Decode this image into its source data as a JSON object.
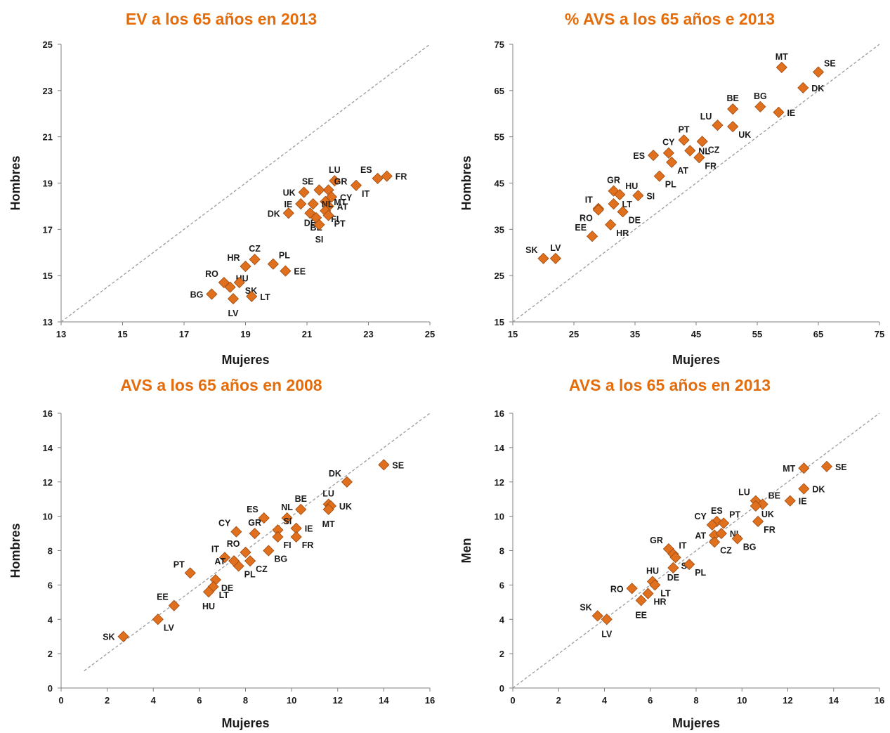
{
  "colors": {
    "title": "#E46C0A",
    "marker": "#E0701E",
    "marker_stroke": "#9A4A10",
    "axis": "#808080",
    "diagonal": "#9a9a9a"
  },
  "chart_data": [
    {
      "type": "scatter",
      "title": "EV a los 65 años en 2013",
      "xlabel": "Mujeres",
      "ylabel": "Hombres",
      "xlim": [
        13,
        25
      ],
      "ylim": [
        13,
        25
      ],
      "xticks": [
        13,
        15,
        17,
        19,
        21,
        23,
        25
      ],
      "yticks": [
        13,
        15,
        17,
        19,
        21,
        23,
        25
      ],
      "diagonal": [
        13,
        25
      ],
      "points": [
        {
          "label": "FR",
          "x": 23.6,
          "y": 19.3,
          "lpos": "r"
        },
        {
          "label": "ES",
          "x": 23.3,
          "y": 19.2,
          "lpos": "tl"
        },
        {
          "label": "IT",
          "x": 22.6,
          "y": 18.9,
          "lpos": "br"
        },
        {
          "label": "LU",
          "x": 21.9,
          "y": 19.1,
          "lpos": "t"
        },
        {
          "label": "GR",
          "x": 21.7,
          "y": 18.7,
          "lpos": "tr"
        },
        {
          "label": "SE",
          "x": 21.4,
          "y": 18.7,
          "lpos": "tl"
        },
        {
          "label": "UK",
          "x": 20.9,
          "y": 18.6,
          "lpos": "l"
        },
        {
          "label": "CY",
          "x": 21.8,
          "y": 18.4,
          "lpos": "r"
        },
        {
          "label": "MT",
          "x": 21.6,
          "y": 18.2,
          "lpos": "r"
        },
        {
          "label": "AT",
          "x": 21.7,
          "y": 18.0,
          "lpos": "r"
        },
        {
          "label": "NL",
          "x": 21.2,
          "y": 18.1,
          "lpos": "r"
        },
        {
          "label": "IE",
          "x": 20.8,
          "y": 18.1,
          "lpos": "l"
        },
        {
          "label": "FI",
          "x": 21.6,
          "y": 17.8,
          "lpos": "br"
        },
        {
          "label": "DK",
          "x": 20.4,
          "y": 17.7,
          "lpos": "l"
        },
        {
          "label": "DE",
          "x": 21.1,
          "y": 17.7,
          "lpos": "b"
        },
        {
          "label": "BE",
          "x": 21.3,
          "y": 17.5,
          "lpos": "b"
        },
        {
          "label": "PT",
          "x": 21.7,
          "y": 17.6,
          "lpos": "br"
        },
        {
          "label": "SI",
          "x": 21.4,
          "y": 17.2,
          "lpos": "bb"
        },
        {
          "label": "CZ",
          "x": 19.3,
          "y": 15.7,
          "lpos": "t"
        },
        {
          "label": "HR",
          "x": 19.0,
          "y": 15.4,
          "lpos": "tl"
        },
        {
          "label": "PL",
          "x": 19.9,
          "y": 15.5,
          "lpos": "tr"
        },
        {
          "label": "EE",
          "x": 20.3,
          "y": 15.2,
          "lpos": "r"
        },
        {
          "label": "RO",
          "x": 18.3,
          "y": 14.7,
          "lpos": "tl"
        },
        {
          "label": "HU",
          "x": 18.5,
          "y": 14.5,
          "lpos": "tr"
        },
        {
          "label": "SK",
          "x": 18.8,
          "y": 14.7,
          "lpos": "br"
        },
        {
          "label": "BG",
          "x": 17.9,
          "y": 14.2,
          "lpos": "l"
        },
        {
          "label": "LV",
          "x": 18.6,
          "y": 14.0,
          "lpos": "bb"
        },
        {
          "label": "LT",
          "x": 19.2,
          "y": 14.1,
          "lpos": "r"
        }
      ]
    },
    {
      "type": "scatter",
      "title": "% AVS a los 65 años e 2013",
      "xlabel": "Mujeres",
      "ylabel": "Hombres",
      "xlim": [
        15,
        75
      ],
      "ylim": [
        15,
        75
      ],
      "xticks": [
        15,
        25,
        35,
        45,
        55,
        65,
        75
      ],
      "yticks": [
        15,
        25,
        35,
        45,
        55,
        65,
        75
      ],
      "diagonal": [
        15,
        75
      ],
      "points": [
        {
          "label": "MT",
          "x": 59,
          "y": 70,
          "lpos": "t"
        },
        {
          "label": "SE",
          "x": 65,
          "y": 69,
          "lpos": "tr"
        },
        {
          "label": "DK",
          "x": 62.5,
          "y": 65.6,
          "lpos": "r"
        },
        {
          "label": "BE",
          "x": 51,
          "y": 61,
          "lpos": "t"
        },
        {
          "label": "BG",
          "x": 55.5,
          "y": 61.5,
          "lpos": "t"
        },
        {
          "label": "IE",
          "x": 58.5,
          "y": 60.3,
          "lpos": "r"
        },
        {
          "label": "LU",
          "x": 48.5,
          "y": 57.5,
          "lpos": "tl"
        },
        {
          "label": "UK",
          "x": 51,
          "y": 57.2,
          "lpos": "br"
        },
        {
          "label": "PT",
          "x": 43,
          "y": 54.3,
          "lpos": "t"
        },
        {
          "label": "CZ",
          "x": 46,
          "y": 54,
          "lpos": "br"
        },
        {
          "label": "CY",
          "x": 40.5,
          "y": 51.5,
          "lpos": "t"
        },
        {
          "label": "NL",
          "x": 44,
          "y": 52,
          "lpos": "r"
        },
        {
          "label": "ES",
          "x": 38,
          "y": 51,
          "lpos": "l"
        },
        {
          "label": "FR",
          "x": 45.5,
          "y": 50.5,
          "lpos": "br"
        },
        {
          "label": "AT",
          "x": 41,
          "y": 49.5,
          "lpos": "br"
        },
        {
          "label": "PL",
          "x": 39,
          "y": 46.5,
          "lpos": "br"
        },
        {
          "label": "GR",
          "x": 31.5,
          "y": 43.3,
          "lpos": "t"
        },
        {
          "label": "HU",
          "x": 32.5,
          "y": 42.5,
          "lpos": "tr"
        },
        {
          "label": "SI",
          "x": 35.5,
          "y": 42.3,
          "lpos": "r"
        },
        {
          "label": "IT",
          "x": 29,
          "y": 39.5,
          "lpos": "tl"
        },
        {
          "label": "LT",
          "x": 31.5,
          "y": 40.5,
          "lpos": "r"
        },
        {
          "label": "RO",
          "x": 29,
          "y": 39.2,
          "lpos": "bl"
        },
        {
          "label": "DE",
          "x": 33,
          "y": 38.8,
          "lpos": "br"
        },
        {
          "label": "HR",
          "x": 31,
          "y": 36,
          "lpos": "br"
        },
        {
          "label": "EE",
          "x": 28,
          "y": 33.5,
          "lpos": "tl"
        },
        {
          "label": "LV",
          "x": 22,
          "y": 28.7,
          "lpos": "t"
        },
        {
          "label": "SK",
          "x": 20,
          "y": 28.7,
          "lpos": "tl"
        }
      ]
    },
    {
      "type": "scatter",
      "title": "AVS a los 65 años en 2008",
      "xlabel": "Mujeres",
      "ylabel": "Hombres",
      "xlim": [
        0,
        16
      ],
      "ylim": [
        0,
        16
      ],
      "xticks": [
        0,
        2,
        4,
        6,
        8,
        10,
        12,
        14,
        16
      ],
      "yticks": [
        0,
        2,
        4,
        6,
        8,
        10,
        12,
        14,
        16
      ],
      "diagonal": [
        1,
        16
      ],
      "points": [
        {
          "label": "SE",
          "x": 14.0,
          "y": 13.0,
          "lpos": "r"
        },
        {
          "label": "DK",
          "x": 12.4,
          "y": 12.0,
          "lpos": "tl"
        },
        {
          "label": "BE",
          "x": 10.4,
          "y": 10.4,
          "lpos": "t"
        },
        {
          "label": "LU",
          "x": 11.6,
          "y": 10.7,
          "lpos": "t"
        },
        {
          "label": "UK",
          "x": 11.7,
          "y": 10.6,
          "lpos": "r"
        },
        {
          "label": "MT",
          "x": 11.6,
          "y": 10.4,
          "lpos": "bb"
        },
        {
          "label": "ES",
          "x": 8.8,
          "y": 9.9,
          "lpos": "tl"
        },
        {
          "label": "NL",
          "x": 9.8,
          "y": 9.9,
          "lpos": "t"
        },
        {
          "label": "CY",
          "x": 7.6,
          "y": 9.1,
          "lpos": "tl"
        },
        {
          "label": "GR",
          "x": 8.4,
          "y": 9.0,
          "lpos": "t"
        },
        {
          "label": "SI",
          "x": 9.4,
          "y": 9.2,
          "lpos": "tr"
        },
        {
          "label": "IE",
          "x": 10.2,
          "y": 9.3,
          "lpos": "r"
        },
        {
          "label": "FI",
          "x": 9.4,
          "y": 8.8,
          "lpos": "br"
        },
        {
          "label": "FR",
          "x": 10.2,
          "y": 8.8,
          "lpos": "br"
        },
        {
          "label": "IT",
          "x": 7.1,
          "y": 7.6,
          "lpos": "tl"
        },
        {
          "label": "RO",
          "x": 8.0,
          "y": 7.9,
          "lpos": "tl"
        },
        {
          "label": "BG",
          "x": 9.0,
          "y": 8.0,
          "lpos": "br"
        },
        {
          "label": "CZ",
          "x": 8.2,
          "y": 7.4,
          "lpos": "br"
        },
        {
          "label": "PL",
          "x": 7.7,
          "y": 7.1,
          "lpos": "br"
        },
        {
          "label": "AT",
          "x": 7.5,
          "y": 7.4,
          "lpos": "l"
        },
        {
          "label": "PT",
          "x": 5.6,
          "y": 6.7,
          "lpos": "tl"
        },
        {
          "label": "DE",
          "x": 6.7,
          "y": 6.3,
          "lpos": "br"
        },
        {
          "label": "LT",
          "x": 6.6,
          "y": 5.9,
          "lpos": "br"
        },
        {
          "label": "HU",
          "x": 6.4,
          "y": 5.6,
          "lpos": "bb"
        },
        {
          "label": "EE",
          "x": 4.9,
          "y": 4.8,
          "lpos": "tl"
        },
        {
          "label": "LV",
          "x": 4.2,
          "y": 4.0,
          "lpos": "br"
        },
        {
          "label": "SK",
          "x": 2.7,
          "y": 3.0,
          "lpos": "l"
        }
      ]
    },
    {
      "type": "scatter",
      "title": "AVS a los 65 años en 2013",
      "xlabel": "Mujeres",
      "ylabel": "Men",
      "xlim": [
        0,
        16
      ],
      "ylim": [
        0,
        16
      ],
      "xticks": [
        0,
        2,
        4,
        6,
        8,
        10,
        12,
        14,
        16
      ],
      "yticks": [
        0,
        2,
        4,
        6,
        8,
        10,
        12,
        14,
        16
      ],
      "diagonal": [
        0,
        16
      ],
      "points": [
        {
          "label": "MT",
          "x": 12.7,
          "y": 12.8,
          "lpos": "l"
        },
        {
          "label": "SE",
          "x": 13.7,
          "y": 12.9,
          "lpos": "r"
        },
        {
          "label": "DK",
          "x": 12.7,
          "y": 11.6,
          "lpos": "r"
        },
        {
          "label": "IE",
          "x": 12.1,
          "y": 10.9,
          "lpos": "r"
        },
        {
          "label": "LU",
          "x": 10.6,
          "y": 10.9,
          "lpos": "tl"
        },
        {
          "label": "BE",
          "x": 10.9,
          "y": 10.7,
          "lpos": "tr"
        },
        {
          "label": "UK",
          "x": 10.6,
          "y": 10.6,
          "lpos": "br"
        },
        {
          "label": "FR",
          "x": 10.7,
          "y": 9.7,
          "lpos": "br"
        },
        {
          "label": "ES",
          "x": 8.9,
          "y": 9.7,
          "lpos": "t"
        },
        {
          "label": "PT",
          "x": 9.2,
          "y": 9.6,
          "lpos": "tr"
        },
        {
          "label": "CY",
          "x": 8.7,
          "y": 9.5,
          "lpos": "tl"
        },
        {
          "label": "AT",
          "x": 8.8,
          "y": 8.9,
          "lpos": "l"
        },
        {
          "label": "NL",
          "x": 9.1,
          "y": 9.0,
          "lpos": "r"
        },
        {
          "label": "CZ",
          "x": 8.8,
          "y": 8.5,
          "lpos": "br"
        },
        {
          "label": "BG",
          "x": 9.8,
          "y": 8.7,
          "lpos": "br"
        },
        {
          "label": "GR",
          "x": 6.8,
          "y": 8.1,
          "lpos": "tl"
        },
        {
          "label": "IT",
          "x": 7.0,
          "y": 7.8,
          "lpos": "tr"
        },
        {
          "label": "SI",
          "x": 7.1,
          "y": 7.6,
          "lpos": "br"
        },
        {
          "label": "PL",
          "x": 7.7,
          "y": 7.2,
          "lpos": "br"
        },
        {
          "label": "DE",
          "x": 7.0,
          "y": 7.0,
          "lpos": "b"
        },
        {
          "label": "HU",
          "x": 6.1,
          "y": 6.2,
          "lpos": "t"
        },
        {
          "label": "LT",
          "x": 6.2,
          "y": 6.0,
          "lpos": "br"
        },
        {
          "label": "RO",
          "x": 5.2,
          "y": 5.8,
          "lpos": "l"
        },
        {
          "label": "HR",
          "x": 5.9,
          "y": 5.5,
          "lpos": "br"
        },
        {
          "label": "EE",
          "x": 5.6,
          "y": 5.1,
          "lpos": "bb"
        },
        {
          "label": "SK",
          "x": 3.7,
          "y": 4.2,
          "lpos": "tl"
        },
        {
          "label": "LV",
          "x": 4.1,
          "y": 4.0,
          "lpos": "bb"
        }
      ]
    }
  ]
}
